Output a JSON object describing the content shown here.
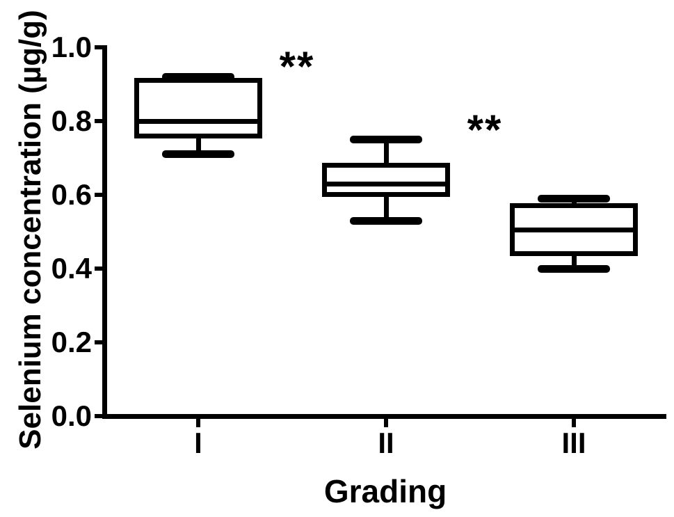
{
  "figure": {
    "background": "#ffffff",
    "ink": "#000000"
  },
  "chart_data": {
    "type": "box",
    "title": "",
    "xlabel": "Grading",
    "ylabel": "Selenium concentration (µg/g)",
    "categories": [
      "I",
      "II",
      "III"
    ],
    "ylim": [
      0.0,
      1.0
    ],
    "yticks": [
      0.0,
      0.2,
      0.4,
      0.6,
      0.8,
      1.0
    ],
    "ytick_labels": [
      "0.0",
      "0.2",
      "0.4",
      "0.6",
      "0.8",
      "1.0"
    ],
    "grid": false,
    "legend": "none",
    "boxes": [
      {
        "category": "I",
        "min": 0.71,
        "q1": 0.76,
        "median": 0.8,
        "q3": 0.91,
        "max": 0.92,
        "annotation": "**"
      },
      {
        "category": "II",
        "min": 0.53,
        "q1": 0.6,
        "median": 0.63,
        "q3": 0.68,
        "max": 0.75,
        "annotation": "**"
      },
      {
        "category": "III",
        "min": 0.4,
        "q1": 0.44,
        "median": 0.505,
        "q3": 0.57,
        "max": 0.59,
        "annotation": ""
      }
    ]
  }
}
